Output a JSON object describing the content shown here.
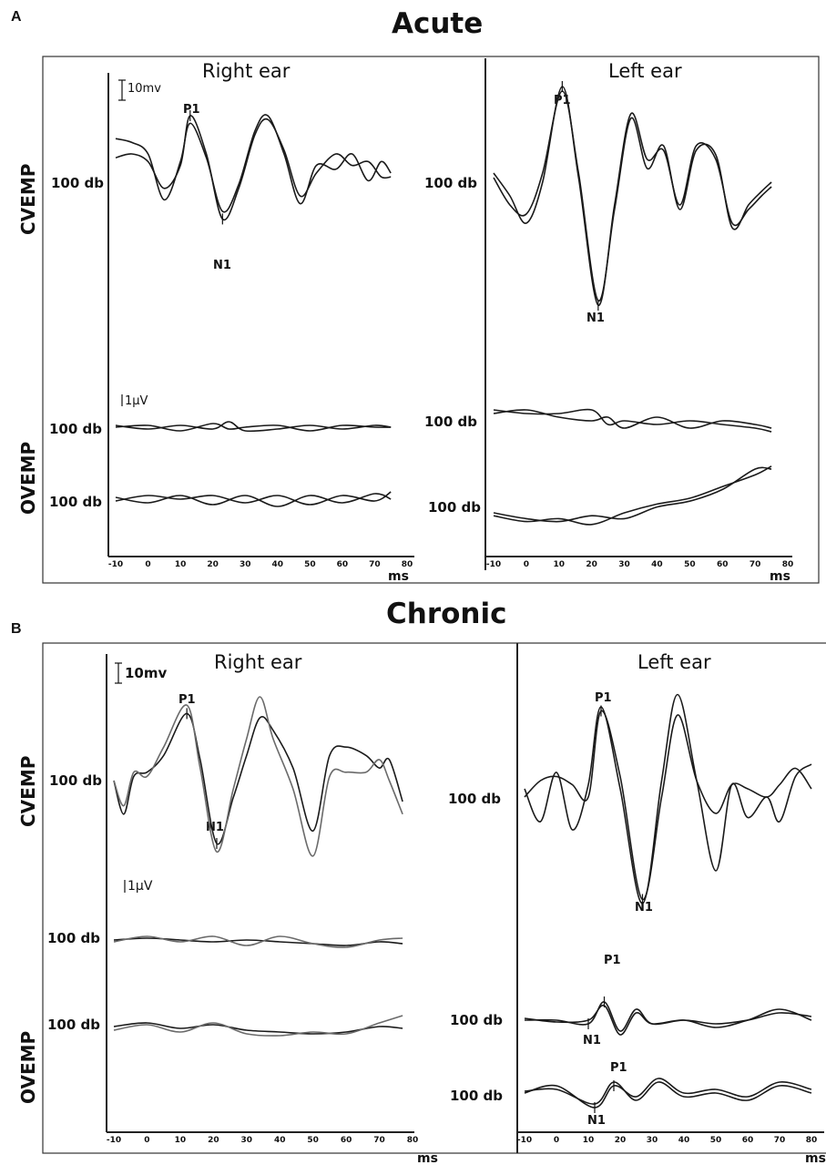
{
  "panels": {
    "A": {
      "letter": "A",
      "title": "Acute"
    },
    "B": {
      "letter": "B",
      "title": "Chronic"
    }
  },
  "labels": {
    "right_ear": "Right ear",
    "left_ear": "Left ear",
    "cvemp": "CVEMP",
    "ovemp": "OVEMP",
    "level": "100 db",
    "scale_cvemp": "10mv",
    "scale_ovemp": "1μV",
    "p1": "P1",
    "n1": "N1",
    "x_unit": "ms"
  },
  "chart_data": [
    {
      "type": "line",
      "panel": "A",
      "title": "Acute",
      "x_ticks": [
        -10,
        0,
        10,
        20,
        30,
        40,
        50,
        60,
        70,
        80
      ],
      "xlabel": "ms",
      "xlim": [
        -10,
        80
      ],
      "subplots": [
        {
          "ear": "Right ear",
          "test": "CVEMP",
          "level": "100 db",
          "scale": "10mv",
          "peaks": [
            {
              "label": "P1",
              "x": 13
            },
            {
              "label": "N1",
              "x": 23
            }
          ],
          "series": [
            {
              "x": [
                -10,
                -5,
                0,
                5,
                10,
                13,
                18,
                23,
                28,
                33,
                37,
                42,
                47,
                52,
                58,
                63,
                68,
                72,
                75
              ],
              "y": [
                0.4,
                0.5,
                0.3,
                -0.4,
                0.2,
                1.5,
                0.5,
                -1.2,
                -0.4,
                1.0,
                1.4,
                0.6,
                -0.6,
                0.0,
                0.5,
                0.2,
                0.3,
                -0.1,
                -0.1
              ]
            },
            {
              "x": [
                -10,
                -5,
                0,
                5,
                10,
                13,
                18,
                23,
                28,
                33,
                37,
                42,
                47,
                52,
                58,
                63,
                68,
                72,
                75
              ],
              "y": [
                0.9,
                0.8,
                0.5,
                -0.7,
                0.3,
                1.3,
                0.4,
                -1.0,
                -0.3,
                1.1,
                1.5,
                0.5,
                -0.8,
                0.2,
                0.1,
                0.5,
                -0.2,
                0.3,
                0.0
              ]
            }
          ]
        },
        {
          "ear": "Left ear",
          "test": "CVEMP",
          "level": "100 db",
          "peaks": [
            {
              "label": "P1",
              "x": 11
            },
            {
              "label": "N1",
              "x": 22
            }
          ],
          "series": [
            {
              "x": [
                -10,
                -5,
                0,
                5,
                11,
                16,
                22,
                27,
                32,
                37,
                42,
                47,
                52,
                58,
                63,
                68,
                72,
                75
              ],
              "y": [
                0.3,
                -0.2,
                -0.8,
                0.1,
                2.2,
                0.2,
                -2.6,
                -0.4,
                1.6,
                0.6,
                0.8,
                -0.4,
                0.9,
                0.6,
                -0.8,
                -0.5,
                -0.2,
                0.0
              ]
            },
            {
              "x": [
                -10,
                -5,
                0,
                5,
                11,
                16,
                22,
                27,
                32,
                37,
                42,
                47,
                52,
                58,
                63,
                68,
                72,
                75
              ],
              "y": [
                0.2,
                -0.4,
                -0.6,
                0.3,
                2.1,
                0.3,
                -2.5,
                -0.5,
                1.5,
                0.4,
                0.9,
                -0.5,
                0.8,
                0.7,
                -0.9,
                -0.4,
                -0.1,
                0.1
              ]
            }
          ]
        },
        {
          "ear": "Right ear",
          "test": "OVEMP",
          "level": "100 db",
          "scale": "1μV",
          "series": [
            {
              "x": [
                -10,
                0,
                10,
                20,
                25,
                30,
                40,
                50,
                60,
                70,
                75
              ],
              "y": [
                0.0,
                0.05,
                -0.1,
                0.1,
                -0.05,
                0.0,
                0.05,
                -0.1,
                0.05,
                0.0,
                0.0
              ]
            },
            {
              "x": [
                -10,
                0,
                10,
                20,
                25,
                30,
                40,
                50,
                60,
                70,
                75
              ],
              "y": [
                0.05,
                -0.05,
                0.05,
                -0.05,
                0.15,
                -0.1,
                -0.05,
                0.05,
                -0.05,
                0.05,
                0.0
              ]
            }
          ]
        },
        {
          "ear": "Right ear",
          "test": "OVEMP",
          "level": "100 db",
          "series": [
            {
              "x": [
                -10,
                0,
                10,
                20,
                30,
                40,
                50,
                60,
                70,
                75
              ],
              "y": [
                0.05,
                -0.1,
                0.1,
                -0.15,
                0.1,
                -0.2,
                0.1,
                -0.1,
                0.15,
                0.0
              ]
            },
            {
              "x": [
                -10,
                0,
                10,
                20,
                30,
                40,
                50,
                60,
                70,
                75
              ],
              "y": [
                -0.05,
                0.1,
                0.0,
                0.1,
                -0.1,
                0.1,
                -0.15,
                0.1,
                -0.05,
                0.2
              ]
            }
          ]
        },
        {
          "ear": "Left ear",
          "test": "OVEMP",
          "level": "100 db",
          "series": [
            {
              "x": [
                -10,
                0,
                10,
                20,
                25,
                30,
                40,
                50,
                60,
                70,
                75
              ],
              "y": [
                0.2,
                0.1,
                0.1,
                0.2,
                -0.2,
                -0.1,
                -0.2,
                -0.1,
                -0.2,
                -0.3,
                -0.4
              ]
            },
            {
              "x": [
                -10,
                0,
                10,
                20,
                25,
                30,
                40,
                50,
                60,
                70,
                75
              ],
              "y": [
                0.1,
                0.2,
                0.0,
                -0.1,
                0.0,
                -0.3,
                0.0,
                -0.3,
                -0.1,
                -0.2,
                -0.3
              ]
            }
          ]
        },
        {
          "ear": "Left ear",
          "test": "OVEMP",
          "level": "100 db",
          "series": [
            {
              "x": [
                -10,
                0,
                10,
                20,
                30,
                40,
                50,
                60,
                70,
                75
              ],
              "y": [
                0.0,
                -0.2,
                -0.3,
                -0.1,
                -0.2,
                0.2,
                0.4,
                0.8,
                1.5,
                1.5
              ]
            },
            {
              "x": [
                -10,
                0,
                10,
                20,
                30,
                40,
                50,
                60,
                70,
                75
              ],
              "y": [
                -0.1,
                -0.3,
                -0.2,
                -0.4,
                0.0,
                0.3,
                0.5,
                0.9,
                1.3,
                1.6
              ]
            }
          ]
        }
      ]
    },
    {
      "type": "line",
      "panel": "B",
      "title": "Chronic",
      "x_ticks": [
        -10,
        0,
        10,
        20,
        30,
        40,
        50,
        60,
        70,
        80
      ],
      "xlabel": "ms",
      "xlim": [
        -10,
        80
      ],
      "subplots": [
        {
          "ear": "Right ear",
          "test": "CVEMP",
          "level": "100 db",
          "scale": "10mv",
          "peaks": [
            {
              "label": "P1",
              "x": 12
            },
            {
              "label": "N1",
              "x": 21
            }
          ],
          "series": [
            {
              "x": [
                -10,
                -7,
                -4,
                0,
                5,
                12,
                16,
                21,
                26,
                30,
                34,
                38,
                44,
                50,
                55,
                60,
                66,
                70,
                73,
                77
              ],
              "y": [
                0.0,
                -0.8,
                0.1,
                0.2,
                0.6,
                1.6,
                0.5,
                -1.5,
                -0.4,
                0.6,
                1.5,
                1.2,
                0.3,
                -1.2,
                0.6,
                0.8,
                0.6,
                0.3,
                0.5,
                -0.5
              ]
            },
            {
              "x": [
                -10,
                -7,
                -4,
                0,
                5,
                12,
                16,
                21,
                26,
                30,
                34,
                38,
                44,
                50,
                55,
                60,
                66,
                70,
                73,
                77
              ],
              "y": [
                0.0,
                -0.6,
                0.2,
                0.1,
                0.8,
                1.8,
                0.3,
                -1.7,
                -0.2,
                1.0,
                2.0,
                1.0,
                -0.2,
                -1.8,
                0.1,
                0.2,
                0.2,
                0.5,
                0.0,
                -0.8
              ]
            }
          ]
        },
        {
          "ear": "Left ear",
          "test": "CVEMP",
          "level": "100 db",
          "peaks": [
            {
              "label": "P1",
              "x": 14
            },
            {
              "label": "N1",
              "x": 27
            }
          ],
          "series": [
            {
              "x": [
                -10,
                -5,
                0,
                5,
                10,
                14,
                20,
                27,
                33,
                38,
                44,
                50,
                55,
                60,
                66,
                70,
                75,
                80
              ],
              "y": [
                0.0,
                0.4,
                0.5,
                0.3,
                0.0,
                2.1,
                0.5,
                -2.5,
                0.0,
                2.0,
                0.4,
                -0.4,
                0.3,
                0.2,
                0.0,
                0.3,
                0.7,
                0.2
              ]
            },
            {
              "x": [
                -10,
                -5,
                0,
                5,
                10,
                14,
                20,
                27,
                33,
                38,
                44,
                50,
                55,
                60,
                66,
                70,
                75,
                80
              ],
              "y": [
                0.2,
                -0.6,
                0.6,
                -0.8,
                0.3,
                2.2,
                0.2,
                -2.6,
                0.4,
                2.5,
                0.4,
                -1.8,
                0.3,
                -0.5,
                0.0,
                -0.6,
                0.5,
                0.8
              ]
            }
          ]
        },
        {
          "ear": "Right ear",
          "test": "OVEMP",
          "level": "100 db",
          "scale": "1μV",
          "series": [
            {
              "x": [
                -10,
                0,
                10,
                20,
                30,
                40,
                50,
                60,
                70,
                77
              ],
              "y": [
                0.0,
                0.05,
                0.0,
                -0.05,
                0.0,
                -0.05,
                -0.1,
                -0.15,
                -0.05,
                -0.1
              ]
            },
            {
              "x": [
                -10,
                0,
                10,
                20,
                30,
                40,
                50,
                60,
                70,
                77
              ],
              "y": [
                -0.05,
                0.1,
                -0.05,
                0.1,
                -0.15,
                0.1,
                -0.1,
                -0.2,
                0.0,
                0.05
              ]
            }
          ]
        },
        {
          "ear": "Right ear",
          "test": "OVEMP",
          "level": "100 db",
          "series": [
            {
              "x": [
                -10,
                0,
                10,
                20,
                30,
                40,
                50,
                60,
                70,
                77
              ],
              "y": [
                0.0,
                0.1,
                -0.05,
                0.05,
                -0.1,
                -0.15,
                -0.2,
                -0.15,
                0.0,
                -0.05
              ]
            },
            {
              "x": [
                -10,
                0,
                10,
                20,
                30,
                40,
                50,
                60,
                70,
                77
              ],
              "y": [
                -0.1,
                0.05,
                -0.15,
                0.1,
                -0.2,
                -0.25,
                -0.15,
                -0.2,
                0.1,
                0.3
              ]
            }
          ]
        },
        {
          "ear": "Left ear",
          "test": "OVEMP",
          "level": "100 db",
          "peaks": [
            {
              "label": "P1",
              "x": 15
            },
            {
              "label": "N1",
              "x": 10
            }
          ],
          "series": [
            {
              "x": [
                -10,
                0,
                10,
                15,
                20,
                25,
                30,
                40,
                50,
                60,
                70,
                80
              ],
              "y": [
                0.0,
                0.0,
                -0.1,
                0.5,
                -0.3,
                0.3,
                -0.1,
                0.0,
                -0.1,
                0.0,
                0.2,
                0.1
              ]
            },
            {
              "x": [
                -10,
                0,
                10,
                15,
                20,
                25,
                30,
                40,
                50,
                60,
                70,
                80
              ],
              "y": [
                0.05,
                -0.05,
                0.0,
                0.4,
                -0.4,
                0.2,
                -0.1,
                0.0,
                -0.2,
                0.0,
                0.3,
                0.0
              ]
            }
          ]
        },
        {
          "ear": "Left ear",
          "test": "OVEMP",
          "level": "100 db",
          "peaks": [
            {
              "label": "P1",
              "x": 18
            },
            {
              "label": "N1",
              "x": 12
            }
          ],
          "series": [
            {
              "x": [
                -10,
                0,
                12,
                18,
                25,
                32,
                40,
                50,
                60,
                70,
                80
              ],
              "y": [
                0.0,
                0.2,
                -0.4,
                0.2,
                -0.1,
                0.4,
                0.0,
                0.1,
                -0.1,
                0.3,
                0.1
              ]
            },
            {
              "x": [
                -10,
                0,
                12,
                18,
                25,
                32,
                40,
                50,
                60,
                70,
                80
              ],
              "y": [
                0.05,
                0.1,
                -0.3,
                0.3,
                -0.2,
                0.3,
                -0.1,
                0.0,
                -0.2,
                0.2,
                0.0
              ]
            }
          ]
        }
      ]
    }
  ]
}
